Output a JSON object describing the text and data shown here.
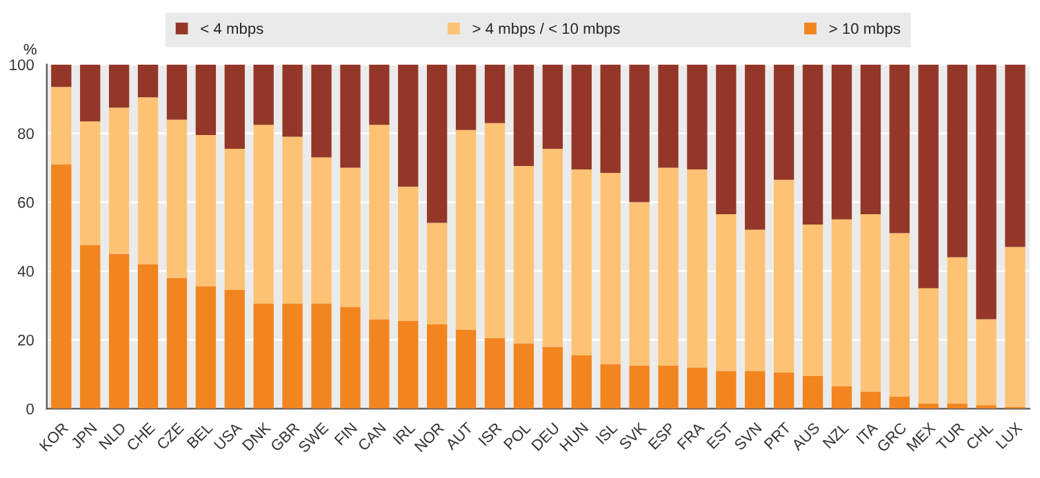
{
  "chart_data": {
    "type": "bar",
    "stacked": true,
    "ylabel": "%",
    "categories": [
      "KOR",
      "JPN",
      "NLD",
      "CHE",
      "CZE",
      "BEL",
      "USA",
      "DNK",
      "GBR",
      "SWE",
      "FIN",
      "CAN",
      "IRL",
      "NOR",
      "AUT",
      "ISR",
      "POL",
      "DEU",
      "HUN",
      "ISL",
      "SVK",
      "ESP",
      "FRA",
      "EST",
      "SVN",
      "PRT",
      "AUS",
      "NZL",
      "ITA",
      "GRC",
      "MEX",
      "TUR",
      "CHL",
      "LUX"
    ],
    "series": [
      {
        "name": "> 10 mbps",
        "color": "#f28520",
        "values": [
          71,
          47.5,
          45,
          42,
          38,
          35.5,
          34.5,
          30.5,
          30.5,
          30.5,
          29.5,
          26,
          25.5,
          24.5,
          23,
          20.5,
          19,
          18,
          15.5,
          13,
          12.5,
          12.5,
          12,
          11,
          11,
          10.5,
          9.5,
          6.5,
          5,
          3.5,
          1.5,
          1.5,
          1,
          0.5
        ]
      },
      {
        "name": "> 4 mbps / < 10 mbps",
        "color": "#fdc273",
        "values": [
          22.5,
          36,
          42.5,
          48.5,
          46,
          44,
          41,
          52,
          48.5,
          42.5,
          40.5,
          56.5,
          39,
          29.5,
          58,
          62.5,
          51.5,
          57.5,
          54,
          55.5,
          47.5,
          57.5,
          57.5,
          45.5,
          41,
          56,
          44,
          48.5,
          51.5,
          47.5,
          33.5,
          42.5,
          25,
          46.5
        ]
      },
      {
        "name": "< 4 mbps",
        "color": "#943728",
        "values": [
          6.5,
          16.5,
          12.5,
          9.5,
          16,
          20.5,
          24.5,
          17.5,
          21,
          27,
          30,
          17.5,
          35.5,
          46,
          19,
          17,
          29.5,
          24.5,
          30.5,
          31.5,
          40,
          30,
          30.5,
          43.5,
          48,
          33.5,
          46.5,
          45,
          43.5,
          49,
          65,
          56,
          74,
          53
        ]
      }
    ],
    "ylim": [
      0,
      100
    ],
    "yticks": [
      0,
      20,
      40,
      60,
      80,
      100
    ],
    "grid": "y",
    "legend": "top"
  }
}
